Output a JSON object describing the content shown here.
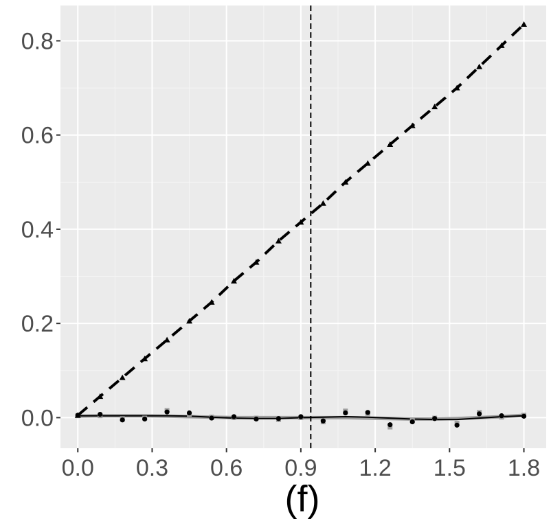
{
  "caption": "(f)",
  "colors": {
    "panel": "#ebebeb",
    "grid_major": "#ffffff",
    "grid_minor": "#f5f5f5",
    "text": "#4d4d4d",
    "dashed_series": "#000000",
    "points_black": "#000000",
    "points_grey": "#9e9e9e",
    "smooth_black": "#000000",
    "smooth_grey": "#9e9e9e"
  },
  "chart_data": {
    "type": "line",
    "title": "",
    "xlabel": "(f)",
    "ylabel": "",
    "xlim": [
      -0.07,
      1.89
    ],
    "ylim": [
      -0.065,
      0.875
    ],
    "x_ticks": [
      0.0,
      0.3,
      0.6,
      0.9,
      1.2,
      1.5,
      1.8
    ],
    "x_tick_labels": [
      "0.0",
      "0.3",
      "0.6",
      "0.9",
      "1.2",
      "1.5",
      "1.8"
    ],
    "y_ticks": [
      0.0,
      0.2,
      0.4,
      0.6,
      0.8
    ],
    "y_tick_labels": [
      "0.0",
      "0.2",
      "0.4",
      "0.6",
      "0.8"
    ],
    "grid": true,
    "vline": {
      "x": 0.94,
      "style": "dashed"
    },
    "x": [
      0.0,
      0.09,
      0.18,
      0.27,
      0.36,
      0.45,
      0.54,
      0.63,
      0.72,
      0.81,
      0.9,
      0.99,
      1.08,
      1.17,
      1.26,
      1.35,
      1.44,
      1.53,
      1.62,
      1.71,
      1.8
    ],
    "series": [
      {
        "style": "dashed-triangles",
        "values": [
          0.005,
          0.045,
          0.085,
          0.125,
          0.165,
          0.205,
          0.245,
          0.29,
          0.33,
          0.375,
          0.415,
          0.455,
          0.5,
          0.54,
          0.58,
          0.62,
          0.66,
          0.7,
          0.745,
          0.79,
          0.835
        ]
      },
      {
        "style": "black-points",
        "values": [
          0.005,
          0.007,
          -0.005,
          -0.003,
          0.012,
          0.01,
          -0.001,
          0.002,
          -0.003,
          -0.002,
          0.002,
          -0.007,
          0.01,
          0.011,
          -0.015,
          -0.009,
          -0.002,
          -0.016,
          0.008,
          0.004,
          0.003
        ]
      },
      {
        "style": "grey-points",
        "values": [
          0.004,
          0.004,
          -0.002,
          -0.001,
          0.015,
          0.007,
          0.001,
          0.0,
          -0.001,
          -0.004,
          0.0,
          -0.009,
          0.014,
          0.009,
          -0.02,
          -0.005,
          -0.001,
          -0.012,
          0.011,
          0.001,
          0.005
        ]
      },
      {
        "style": "smooth-grey",
        "values": [
          0.003,
          0.004,
          0.004,
          0.004,
          0.003,
          0.002,
          0.001,
          0.0,
          0.0,
          0.0,
          0.0,
          0.0,
          0.0,
          -0.001,
          -0.002,
          -0.003,
          -0.003,
          -0.002,
          0.0,
          0.002,
          0.005
        ]
      },
      {
        "style": "smooth-black",
        "values": [
          0.004,
          0.004,
          0.004,
          0.004,
          0.004,
          0.003,
          0.001,
          -0.001,
          -0.002,
          -0.002,
          0.0,
          0.001,
          0.002,
          0.001,
          -0.001,
          -0.003,
          -0.004,
          -0.004,
          -0.001,
          0.002,
          0.004
        ]
      }
    ]
  }
}
